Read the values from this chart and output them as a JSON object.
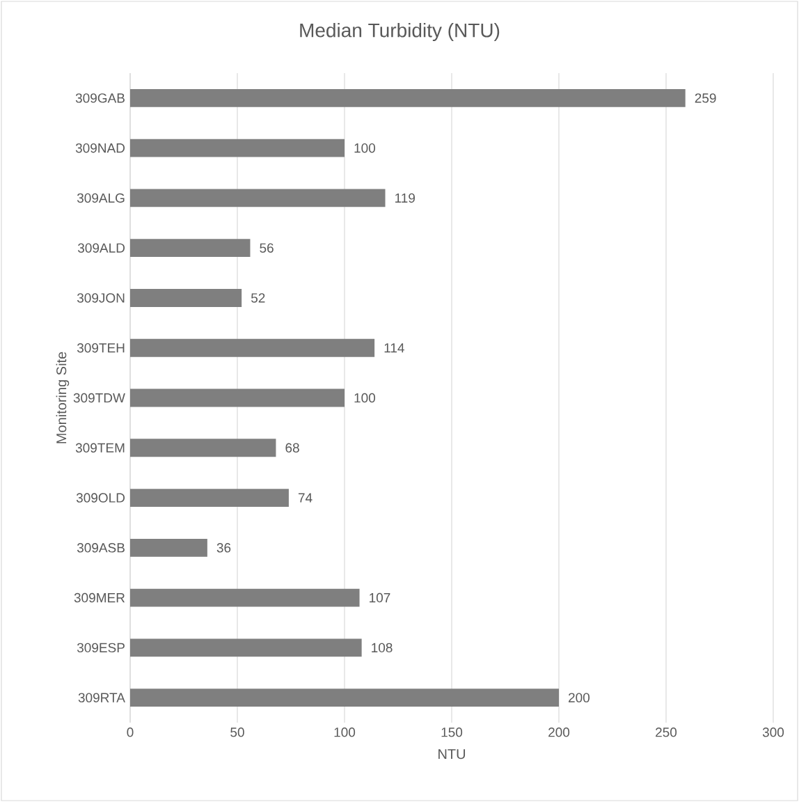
{
  "chart_data": {
    "type": "bar",
    "orientation": "horizontal",
    "title": "Median Turbidity (NTU)",
    "xlabel": "NTU",
    "ylabel": "Monitoring Site",
    "categories": [
      "309GAB",
      "309NAD",
      "309ALG",
      "309ALD",
      "309JON",
      "309TEH",
      "309TDW",
      "309TEM",
      "309OLD",
      "309ASB",
      "309MER",
      "309ESP",
      "309RTA"
    ],
    "values": [
      259,
      100,
      119,
      56,
      52,
      114,
      100,
      68,
      74,
      36,
      107,
      108,
      200
    ],
    "color": "#7f7f7f",
    "xlim": [
      0,
      300
    ],
    "xticks": [
      0,
      50,
      100,
      150,
      200,
      250,
      300
    ],
    "grid": "x",
    "data_labels": true
  }
}
